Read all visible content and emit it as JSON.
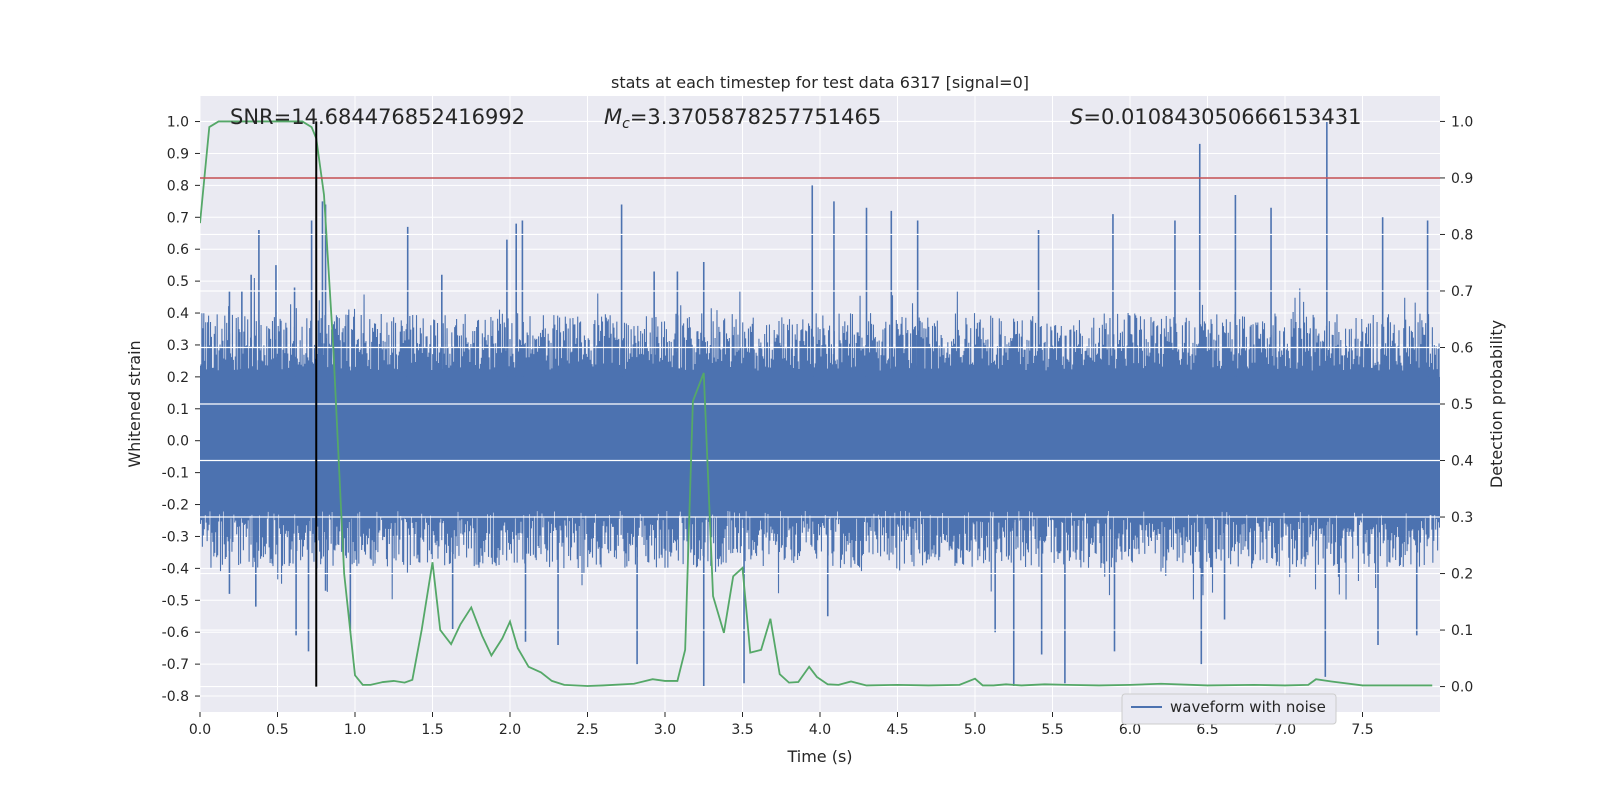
{
  "chart_data": {
    "type": "line",
    "title": "stats at each timestep for test data 6317 [signal=0]",
    "xlabel": "Time (s)",
    "ylabel_left": "Whitened strain",
    "ylabel_right": "Detection probability",
    "xlim": [
      0.0,
      8.0
    ],
    "ylim_left": [
      -0.85,
      1.08
    ],
    "ylim_right": [
      -0.045,
      1.045
    ],
    "x_ticks": [
      "0.0",
      "0.5",
      "1.0",
      "1.5",
      "2.0",
      "2.5",
      "3.0",
      "3.5",
      "4.0",
      "4.5",
      "5.0",
      "5.5",
      "6.0",
      "6.5",
      "7.0",
      "7.5"
    ],
    "y_left_ticks": [
      "-0.8",
      "-0.7",
      "-0.6",
      "-0.5",
      "-0.4",
      "-0.3",
      "-0.2",
      "-0.1",
      "0.0",
      "0.1",
      "0.2",
      "0.3",
      "0.4",
      "0.5",
      "0.6",
      "0.7",
      "0.8",
      "0.9",
      "1.0"
    ],
    "y_right_ticks": [
      "0.0",
      "0.1",
      "0.2",
      "0.3",
      "0.4",
      "0.5",
      "0.6",
      "0.7",
      "0.8",
      "0.9",
      "1.0"
    ],
    "grid": true,
    "legend_position": "lower right",
    "annotations": {
      "snr": "SNR=14.684476852416992",
      "mc_symbol": "M",
      "mc_sub": "c",
      "mc_value": "=3.3705878257751465",
      "s_symbol": "S",
      "s_value": "=0.010843050666153431"
    },
    "threshold_probability": 0.9,
    "marker_time": 0.75,
    "colors": {
      "waveform": "#4c72b0",
      "probability": "#55a868",
      "threshold": "#c44e52",
      "marker": "#000000",
      "background": "#eaeaf2",
      "grid": "#ffffff"
    },
    "series": [
      {
        "name": "waveform with noise",
        "note_envelope": "dense noise between about -0.5 and 0.5, spikes listed below",
        "spikes": [
          [
            0.19,
            0.47
          ],
          [
            0.27,
            0.47
          ],
          [
            0.33,
            0.52
          ],
          [
            0.38,
            0.66
          ],
          [
            0.49,
            0.55
          ],
          [
            0.61,
            0.48
          ],
          [
            0.72,
            0.69
          ],
          [
            0.79,
            0.75
          ],
          [
            0.81,
            0.74
          ],
          [
            1.34,
            0.67
          ],
          [
            1.56,
            0.52
          ],
          [
            1.98,
            0.63
          ],
          [
            2.04,
            0.68
          ],
          [
            2.08,
            0.69
          ],
          [
            2.72,
            0.74
          ],
          [
            2.93,
            0.53
          ],
          [
            3.08,
            0.53
          ],
          [
            3.25,
            0.56
          ],
          [
            3.95,
            0.8
          ],
          [
            4.09,
            0.75
          ],
          [
            4.3,
            0.73
          ],
          [
            4.46,
            0.72
          ],
          [
            4.63,
            0.69
          ],
          [
            5.41,
            0.66
          ],
          [
            5.89,
            0.71
          ],
          [
            6.29,
            0.69
          ],
          [
            6.45,
            0.93
          ],
          [
            6.68,
            0.77
          ],
          [
            6.91,
            0.73
          ],
          [
            7.27,
            1.0
          ],
          [
            7.63,
            0.7
          ],
          [
            7.92,
            0.69
          ],
          [
            0.19,
            -0.48
          ],
          [
            0.36,
            -0.52
          ],
          [
            0.62,
            -0.61
          ],
          [
            0.7,
            -0.66
          ],
          [
            0.81,
            -0.47
          ],
          [
            0.97,
            -0.6
          ],
          [
            1.63,
            -0.59
          ],
          [
            2.1,
            -0.63
          ],
          [
            2.31,
            -0.64
          ],
          [
            2.82,
            -0.7
          ],
          [
            3.25,
            -0.77
          ],
          [
            3.51,
            -0.76
          ],
          [
            4.05,
            -0.55
          ],
          [
            5.13,
            -0.6
          ],
          [
            5.25,
            -0.77
          ],
          [
            5.43,
            -0.67
          ],
          [
            5.58,
            -0.76
          ],
          [
            5.9,
            -0.66
          ],
          [
            6.46,
            -0.7
          ],
          [
            6.61,
            -0.56
          ],
          [
            7.26,
            -0.74
          ],
          [
            7.6,
            -0.64
          ],
          [
            7.85,
            -0.61
          ]
        ]
      },
      {
        "name": "detection probability",
        "x": [
          0.0,
          0.06,
          0.12,
          0.2,
          0.3,
          0.4,
          0.5,
          0.6,
          0.66,
          0.72,
          0.75,
          0.8,
          0.86,
          0.93,
          1.0,
          1.05,
          1.1,
          1.18,
          1.25,
          1.32,
          1.37,
          1.43,
          1.5,
          1.55,
          1.62,
          1.68,
          1.75,
          1.82,
          1.88,
          1.95,
          2.0,
          2.05,
          2.12,
          2.2,
          2.27,
          2.35,
          2.5,
          2.6,
          2.8,
          2.92,
          3.0,
          3.08,
          3.13,
          3.18,
          3.25,
          3.31,
          3.38,
          3.44,
          3.5,
          3.55,
          3.62,
          3.68,
          3.74,
          3.8,
          3.86,
          3.93,
          3.98,
          4.05,
          4.12,
          4.2,
          4.3,
          4.5,
          4.7,
          4.9,
          5.0,
          5.05,
          5.12,
          5.2,
          5.3,
          5.45,
          5.6,
          5.8,
          6.0,
          6.2,
          6.5,
          6.8,
          7.0,
          7.15,
          7.2,
          7.3,
          7.5,
          7.7,
          7.95
        ],
        "values": [
          0.82,
          0.99,
          1.0,
          1.0,
          1.0,
          1.0,
          1.0,
          1.0,
          1.0,
          0.99,
          0.97,
          0.87,
          0.6,
          0.2,
          0.02,
          0.003,
          0.003,
          0.008,
          0.01,
          0.007,
          0.012,
          0.1,
          0.22,
          0.1,
          0.075,
          0.11,
          0.14,
          0.09,
          0.055,
          0.085,
          0.115,
          0.068,
          0.035,
          0.025,
          0.01,
          0.003,
          0.001,
          0.002,
          0.005,
          0.013,
          0.01,
          0.01,
          0.065,
          0.505,
          0.555,
          0.16,
          0.095,
          0.195,
          0.21,
          0.06,
          0.065,
          0.12,
          0.022,
          0.007,
          0.008,
          0.035,
          0.017,
          0.004,
          0.003,
          0.009,
          0.002,
          0.003,
          0.002,
          0.003,
          0.014,
          0.002,
          0.002,
          0.004,
          0.002,
          0.004,
          0.003,
          0.002,
          0.003,
          0.005,
          0.002,
          0.003,
          0.002,
          0.003,
          0.013,
          0.009,
          0.002,
          0.002,
          0.002
        ]
      }
    ]
  }
}
